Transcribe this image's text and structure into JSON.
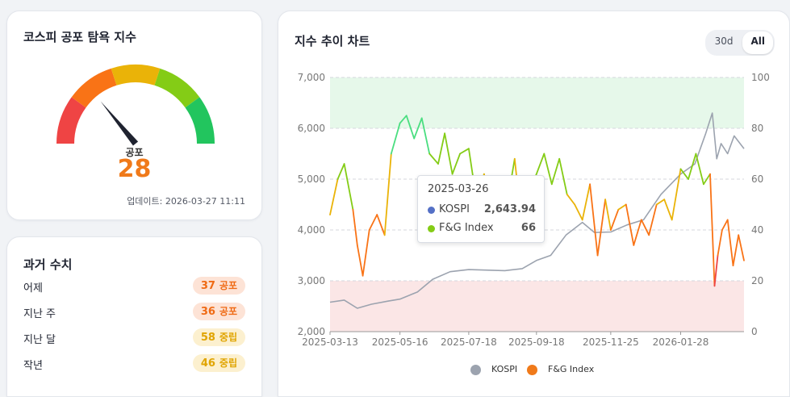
{
  "gauge": {
    "title": "코스피 공포 탐욕 지수",
    "label": "공포",
    "value": "28",
    "value_num": 28,
    "updated": "업데이트: 2026-03-27 11:11",
    "segment_colors": [
      "#ef4444",
      "#f97316",
      "#eab308",
      "#84cc16",
      "#22c55e"
    ],
    "needle_color": "#1f2330",
    "value_color": "#f07a1a"
  },
  "history": {
    "title": "과거 수치",
    "items": [
      {
        "label": "어제",
        "value": "37",
        "category": "공포",
        "kind": "fear"
      },
      {
        "label": "지난 주",
        "value": "36",
        "category": "공포",
        "kind": "fear"
      },
      {
        "label": "지난 달",
        "value": "58",
        "category": "중립",
        "kind": "neutral"
      },
      {
        "label": "작년",
        "value": "46",
        "category": "중립",
        "kind": "neutral"
      }
    ]
  },
  "chart": {
    "title": "지수 추이 차트",
    "range_options": [
      "30d",
      "All"
    ],
    "range_selected": "All",
    "tooltip": {
      "date": "2025-03-26",
      "rows": [
        {
          "label": "KOSPI",
          "value": "2,643.94",
          "color": "#5470c6"
        },
        {
          "label": "F&G Index",
          "value": "66",
          "color": "#84cc16"
        }
      ]
    },
    "legend": [
      {
        "label": "KOSPI",
        "color": "#9ca3af"
      },
      {
        "label": "F&G Index",
        "color": "#f07a1a"
      }
    ]
  },
  "chart_data": {
    "type": "line",
    "x_ticks": [
      "2025-03-13",
      "2025-05-16",
      "2025-07-18",
      "2025-09-18",
      "2025-11-25",
      "2026-01-28"
    ],
    "y_left_ticks": [
      "2,000",
      "3,000",
      "4,000",
      "5,000",
      "6,000",
      "7,000"
    ],
    "y_right_ticks": [
      "0",
      "20",
      "40",
      "60",
      "80",
      "100"
    ],
    "y_left_range": [
      2000,
      7000
    ],
    "y_right_range": [
      0,
      100
    ],
    "bands": [
      {
        "from": 80,
        "to": 100,
        "color": "#e6f8ea",
        "axis": "right"
      },
      {
        "from": 0,
        "to": 20,
        "color": "#fbe6e6",
        "axis": "right"
      }
    ],
    "series": [
      {
        "name": "KOSPI",
        "axis": "left",
        "color": "#9ca3af",
        "x": [
          "2025-03-13",
          "2025-03-26",
          "2025-04-07",
          "2025-04-20",
          "2025-05-05",
          "2025-05-16",
          "2025-06-01",
          "2025-06-15",
          "2025-07-01",
          "2025-07-18",
          "2025-08-05",
          "2025-08-20",
          "2025-09-05",
          "2025-09-18",
          "2025-10-01",
          "2025-10-15",
          "2025-10-30",
          "2025-11-10",
          "2025-11-25",
          "2025-12-10",
          "2025-12-25",
          "2026-01-10",
          "2026-01-28",
          "2026-02-10",
          "2026-02-20",
          "2026-02-26",
          "2026-03-02",
          "2026-03-06",
          "2026-03-12",
          "2026-03-18",
          "2026-03-27"
        ],
        "y": [
          2580,
          2620,
          2460,
          2540,
          2600,
          2640,
          2780,
          3030,
          3180,
          3220,
          3210,
          3200,
          3240,
          3400,
          3500,
          3900,
          4150,
          3950,
          3960,
          4100,
          4200,
          4700,
          5100,
          5300,
          5900,
          6300,
          5400,
          5700,
          5500,
          5850,
          5600
        ]
      },
      {
        "name": "F&G Index",
        "axis": "right",
        "x": [
          "2025-03-13",
          "2025-03-20",
          "2025-03-26",
          "2025-04-03",
          "2025-04-07",
          "2025-04-12",
          "2025-04-18",
          "2025-04-25",
          "2025-05-02",
          "2025-05-08",
          "2025-05-16",
          "2025-05-22",
          "2025-05-29",
          "2025-06-05",
          "2025-06-12",
          "2025-06-20",
          "2025-06-26",
          "2025-07-03",
          "2025-07-10",
          "2025-07-18",
          "2025-07-25",
          "2025-08-01",
          "2025-08-08",
          "2025-08-15",
          "2025-08-22",
          "2025-08-29",
          "2025-09-05",
          "2025-09-12",
          "2025-09-18",
          "2025-09-25",
          "2025-10-02",
          "2025-10-09",
          "2025-10-16",
          "2025-10-23",
          "2025-10-30",
          "2025-11-06",
          "2025-11-13",
          "2025-11-20",
          "2025-11-25",
          "2025-12-02",
          "2025-12-09",
          "2025-12-16",
          "2025-12-23",
          "2025-12-30",
          "2026-01-06",
          "2026-01-13",
          "2026-01-20",
          "2026-01-28",
          "2026-02-04",
          "2026-02-11",
          "2026-02-18",
          "2026-02-24",
          "2026-02-28",
          "2026-03-03",
          "2026-03-07",
          "2026-03-12",
          "2026-03-17",
          "2026-03-22",
          "2026-03-27"
        ],
        "y": [
          46,
          60,
          66,
          48,
          34,
          22,
          40,
          46,
          38,
          70,
          82,
          85,
          76,
          84,
          70,
          66,
          78,
          62,
          70,
          72,
          52,
          62,
          44,
          60,
          50,
          68,
          40,
          56,
          62,
          70,
          58,
          68,
          54,
          50,
          44,
          58,
          30,
          52,
          40,
          48,
          50,
          34,
          44,
          38,
          50,
          52,
          44,
          64,
          60,
          70,
          58,
          62,
          18,
          30,
          40,
          44,
          26,
          38,
          28
        ]
      }
    ]
  }
}
